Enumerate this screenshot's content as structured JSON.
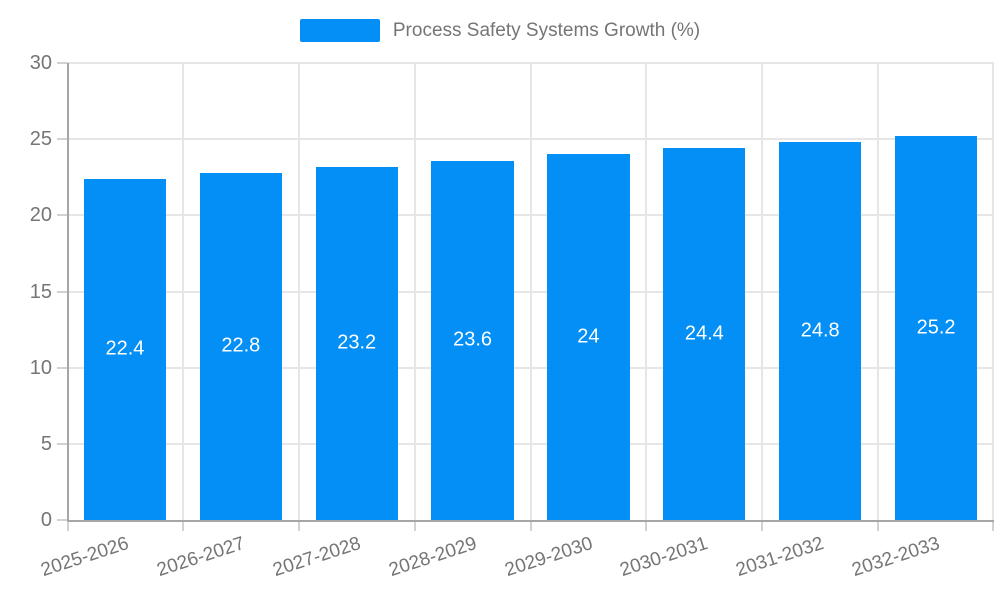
{
  "legend": {
    "label": "Process Safety Systems Growth (%)"
  },
  "colors": {
    "bar": "#038FF5",
    "grid": "#e6e6e6",
    "axis": "#a6a6a6",
    "tick": "#d2d2d2",
    "text": "#757575",
    "value_label": "#ffffff",
    "background": "#ffffff"
  },
  "chart_data": {
    "type": "bar",
    "title": "Process Safety Systems Growth (%)",
    "categories": [
      "2025-2026",
      "2026-2027",
      "2027-2028",
      "2028-2029",
      "2029-2030",
      "2030-2031",
      "2031-2032",
      "2032-2033"
    ],
    "values": [
      22.4,
      22.8,
      23.2,
      23.6,
      24,
      24.4,
      24.8,
      25.2
    ],
    "value_labels": [
      "22.4",
      "22.8",
      "23.2",
      "23.6",
      "24",
      "24.4",
      "24.8",
      "25.2"
    ],
    "xlabel": "",
    "ylabel": "",
    "ylim": [
      0,
      30
    ],
    "yticks": [
      0,
      5,
      10,
      15,
      20,
      25,
      30
    ],
    "grid": true,
    "legend_position": "top",
    "bar_width_fraction": 0.71,
    "x_label_rotation_deg": -18,
    "value_label_position": "center-inside"
  }
}
